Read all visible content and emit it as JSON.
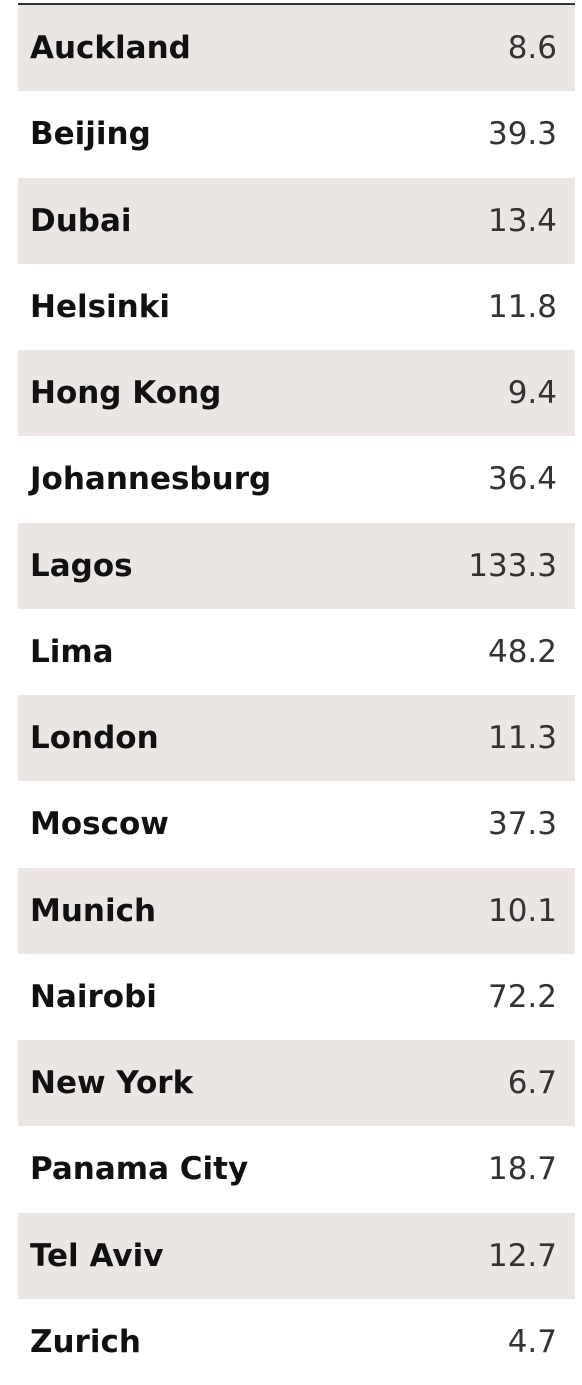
{
  "table": {
    "rows": [
      [
        "Auckland",
        8.6
      ],
      [
        "Beijing",
        39.3
      ],
      [
        "Dubai",
        13.4
      ],
      [
        "Helsinki",
        11.8
      ],
      [
        "Hong Kong",
        9.4
      ],
      [
        "Johannesburg",
        36.4
      ],
      [
        "Lagos",
        133.3
      ],
      [
        "Lima",
        48.2
      ],
      [
        "London",
        11.3
      ],
      [
        "Moscow",
        37.3
      ],
      [
        "Munich",
        10.1
      ],
      [
        "Nairobi",
        72.2
      ],
      [
        "New York",
        6.7
      ],
      [
        "Panama City",
        18.7
      ],
      [
        "Tel Aviv",
        12.7
      ],
      [
        "Zurich",
        4.7
      ]
    ]
  }
}
